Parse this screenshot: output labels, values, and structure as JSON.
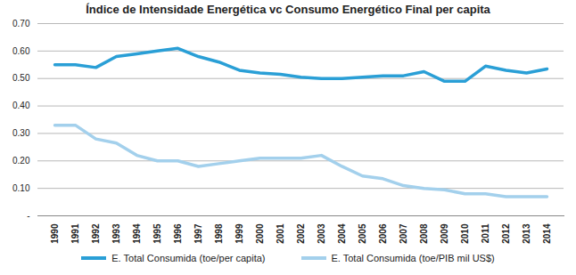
{
  "chart_data": {
    "type": "line",
    "title": "Índice de Intensidade Energética vc Consumo Energético Final per capita",
    "categories": [
      "1990",
      "1991",
      "1992",
      "1993",
      "1994",
      "1995",
      "1996",
      "1997",
      "1998",
      "1999",
      "2000",
      "2001",
      "2002",
      "2003",
      "2004",
      "2005",
      "2006",
      "2007",
      "2008",
      "2009",
      "2010",
      "2011",
      "2012",
      "2013",
      "2014"
    ],
    "series": [
      {
        "name": "E. Total Consumida (toe/per capita)",
        "color": "#2a9fd6",
        "values": [
          0.55,
          0.55,
          0.54,
          0.58,
          0.59,
          0.6,
          0.61,
          0.58,
          0.56,
          0.53,
          0.52,
          0.515,
          0.505,
          0.5,
          0.5,
          0.505,
          0.51,
          0.51,
          0.525,
          0.49,
          0.49,
          0.545,
          0.53,
          0.52,
          0.535
        ]
      },
      {
        "name": "E. Total Consumida (toe/PIB mil US$)",
        "color": "#a3d0ec",
        "values": [
          0.33,
          0.33,
          0.28,
          0.265,
          0.22,
          0.2,
          0.2,
          0.18,
          0.19,
          0.2,
          0.21,
          0.21,
          0.21,
          0.22,
          0.18,
          0.145,
          0.135,
          0.11,
          0.1,
          0.095,
          0.08,
          0.08,
          0.07,
          0.07,
          0.07
        ]
      }
    ],
    "ylim": [
      0,
      0.7
    ],
    "yticks": [
      {
        "value": 0,
        "label": "-"
      },
      {
        "value": 0.1,
        "label": "0.10"
      },
      {
        "value": 0.2,
        "label": "0.20"
      },
      {
        "value": 0.3,
        "label": "0.30"
      },
      {
        "value": 0.4,
        "label": "0.40"
      },
      {
        "value": 0.5,
        "label": "0.50"
      },
      {
        "value": 0.6,
        "label": "0.60"
      },
      {
        "value": 0.7,
        "label": "0.70"
      }
    ],
    "grid": true,
    "legend": "bottom"
  }
}
